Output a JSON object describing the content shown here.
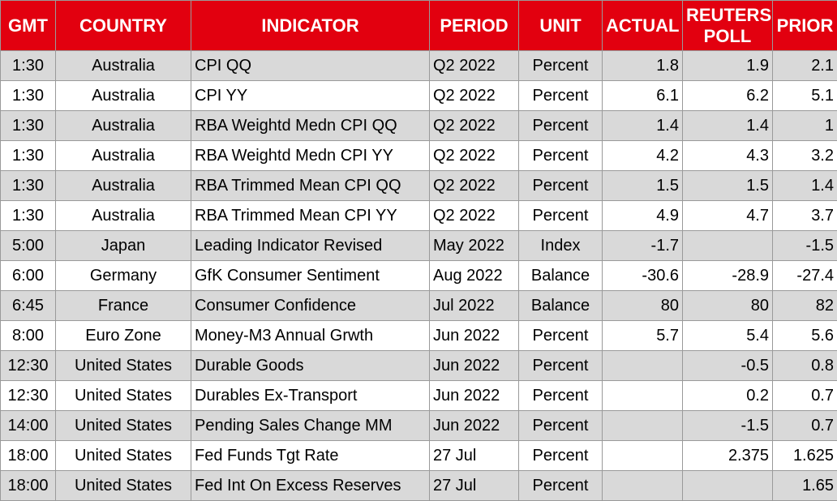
{
  "headers": {
    "gmt": "GMT",
    "country": "COUNTRY",
    "indicator": "INDICATOR",
    "period": "PERIOD",
    "unit": "UNIT",
    "actual": "ACTUAL",
    "poll_line1": "REUTERS",
    "poll_line2": "POLL",
    "prior": "PRIOR"
  },
  "rows": [
    {
      "gmt": "1:30",
      "country": "Australia",
      "indicator": "CPI QQ",
      "period": "Q2 2022",
      "unit": "Percent",
      "actual": "1.8",
      "poll": "1.9",
      "prior": "2.1"
    },
    {
      "gmt": "1:30",
      "country": "Australia",
      "indicator": "CPI YY",
      "period": "Q2 2022",
      "unit": "Percent",
      "actual": "6.1",
      "poll": "6.2",
      "prior": "5.1"
    },
    {
      "gmt": "1:30",
      "country": "Australia",
      "indicator": "RBA Weightd Medn CPI QQ",
      "period": "Q2 2022",
      "unit": "Percent",
      "actual": "1.4",
      "poll": "1.4",
      "prior": "1"
    },
    {
      "gmt": "1:30",
      "country": "Australia",
      "indicator": "RBA Weightd Medn CPI YY",
      "period": "Q2 2022",
      "unit": "Percent",
      "actual": "4.2",
      "poll": "4.3",
      "prior": "3.2"
    },
    {
      "gmt": "1:30",
      "country": "Australia",
      "indicator": "RBA Trimmed Mean CPI QQ",
      "period": "Q2 2022",
      "unit": "Percent",
      "actual": "1.5",
      "poll": "1.5",
      "prior": "1.4"
    },
    {
      "gmt": "1:30",
      "country": "Australia",
      "indicator": "RBA Trimmed Mean CPI YY",
      "period": "Q2 2022",
      "unit": "Percent",
      "actual": "4.9",
      "poll": "4.7",
      "prior": "3.7"
    },
    {
      "gmt": "5:00",
      "country": "Japan",
      "indicator": "Leading Indicator Revised",
      "period": "May 2022",
      "unit": "Index",
      "actual": "-1.7",
      "poll": "",
      "prior": "-1.5"
    },
    {
      "gmt": "6:00",
      "country": "Germany",
      "indicator": "GfK Consumer Sentiment",
      "period": "Aug 2022",
      "unit": "Balance",
      "actual": "-30.6",
      "poll": "-28.9",
      "prior": "-27.4"
    },
    {
      "gmt": "6:45",
      "country": "France",
      "indicator": "Consumer Confidence",
      "period": "Jul 2022",
      "unit": "Balance",
      "actual": "80",
      "poll": "80",
      "prior": "82"
    },
    {
      "gmt": "8:00",
      "country": "Euro Zone",
      "indicator": "Money-M3 Annual Grwth",
      "period": "Jun 2022",
      "unit": "Percent",
      "actual": "5.7",
      "poll": "5.4",
      "prior": "5.6"
    },
    {
      "gmt": "12:30",
      "country": "United States",
      "indicator": "Durable Goods",
      "period": "Jun 2022",
      "unit": "Percent",
      "actual": "",
      "poll": "-0.5",
      "prior": "0.8"
    },
    {
      "gmt": "12:30",
      "country": "United States",
      "indicator": "Durables Ex-Transport",
      "period": "Jun 2022",
      "unit": "Percent",
      "actual": "",
      "poll": "0.2",
      "prior": "0.7"
    },
    {
      "gmt": "14:00",
      "country": "United States",
      "indicator": "Pending Sales Change MM",
      "period": "Jun 2022",
      "unit": "Percent",
      "actual": "",
      "poll": "-1.5",
      "prior": "0.7"
    },
    {
      "gmt": "18:00",
      "country": "United States",
      "indicator": "Fed Funds Tgt Rate",
      "period": "27 Jul",
      "unit": "Percent",
      "actual": "",
      "poll": "2.375",
      "prior": "1.625"
    },
    {
      "gmt": "18:00",
      "country": "United States",
      "indicator": "Fed Int On Excess Reserves",
      "period": "27 Jul",
      "unit": "Percent",
      "actual": "",
      "poll": "",
      "prior": "1.65"
    }
  ],
  "colors": {
    "header_bg": "#e2000f",
    "header_text": "#ffffff",
    "shaded_row": "#d9d9d9",
    "plain_row": "#ffffff",
    "border": "#9a9a9a"
  }
}
